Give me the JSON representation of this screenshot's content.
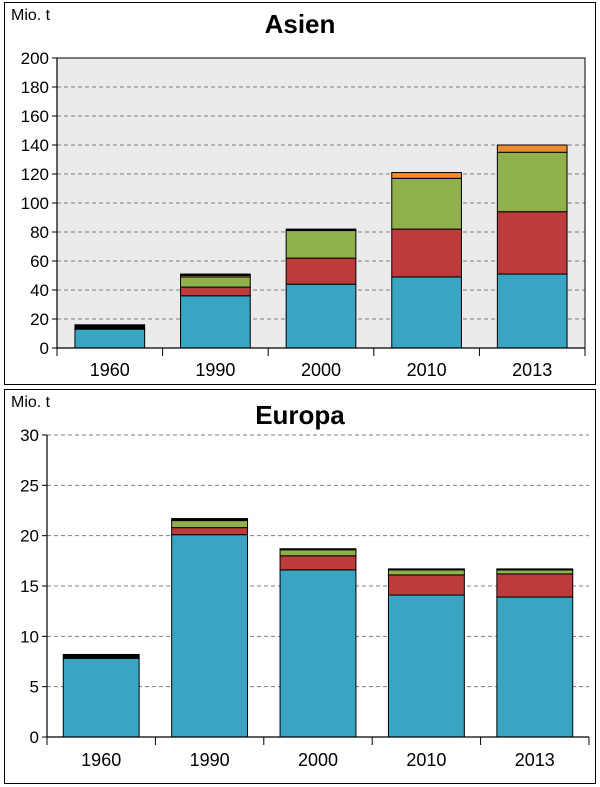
{
  "chart_data": [
    {
      "type": "bar",
      "stacked": true,
      "title": "Asien",
      "unit_label": "Mio. t",
      "categories": [
        "1960",
        "1990",
        "2000",
        "2010",
        "2013"
      ],
      "series": [
        {
          "color": "#39a5c2",
          "values": [
            13,
            36,
            44,
            49,
            51
          ]
        },
        {
          "color": "#bc3b3b",
          "values": [
            0,
            6,
            18,
            33,
            43
          ]
        },
        {
          "color": "#8fb04a",
          "values": [
            0,
            7,
            19,
            35,
            41
          ]
        },
        {
          "color": "#f08a2e",
          "values": [
            0,
            1,
            0,
            4,
            5
          ]
        },
        {
          "color": "#000000",
          "values": [
            3,
            1,
            1,
            0,
            0
          ]
        }
      ],
      "ylim": [
        0,
        200
      ],
      "yticks": [
        0,
        20,
        40,
        60,
        80,
        100,
        120,
        140,
        160,
        180,
        200
      ],
      "grid": true,
      "grid_style": "dashed",
      "plot_background": "#ebebeb"
    },
    {
      "type": "bar",
      "stacked": true,
      "title": "Europa",
      "unit_label": "Mio. t",
      "categories": [
        "1960",
        "1990",
        "2000",
        "2010",
        "2013"
      ],
      "series": [
        {
          "color": "#39a5c2",
          "values": [
            7.8,
            20.1,
            16.6,
            14.1,
            13.9
          ]
        },
        {
          "color": "#bc3b3b",
          "values": [
            0,
            0.7,
            1.4,
            2.0,
            2.3
          ]
        },
        {
          "color": "#8fb04a",
          "values": [
            0,
            0.7,
            0.6,
            0.5,
            0.4
          ]
        },
        {
          "color": "#f08a2e",
          "values": [
            0,
            0,
            0,
            0,
            0
          ]
        },
        {
          "color": "#000000",
          "values": [
            0.4,
            0.2,
            0.1,
            0.1,
            0.1
          ]
        }
      ],
      "ylim": [
        0,
        30
      ],
      "yticks": [
        0,
        5,
        10,
        15,
        20,
        25,
        30
      ],
      "grid": true,
      "grid_style": "dashed",
      "plot_background": "#ffffff"
    }
  ]
}
